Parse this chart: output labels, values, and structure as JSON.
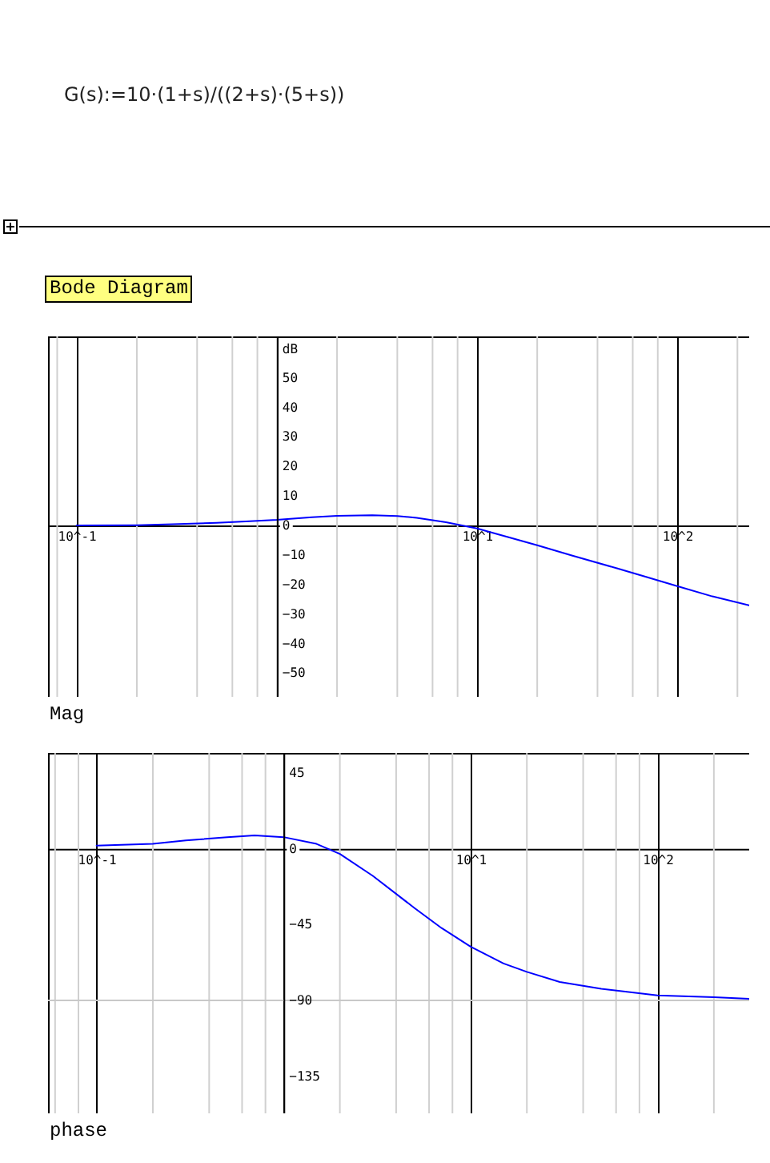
{
  "chart_data": [
    {
      "type": "line",
      "title": "Bode Diagram",
      "annotations": [
        "G(s):=10·(1+s)/((2+s)·(5+s))"
      ],
      "xlabel": "Mag",
      "ylabel": "dB",
      "log": "x",
      "xlim": [
        0.072,
        229
      ],
      "ylim": [
        -58,
        64
      ],
      "xticks": [
        {
          "value": 0.1,
          "label": "10^-1"
        },
        {
          "value": 1,
          "label": null
        },
        {
          "value": 10,
          "label": "10^1"
        },
        {
          "value": 100,
          "label": "10^2"
        }
      ],
      "yticks": [
        -50,
        -40,
        -30,
        -20,
        -10,
        0,
        10,
        20,
        30,
        40,
        50
      ],
      "grid": "x",
      "marker": "none",
      "line_style": "solid",
      "series": [
        {
          "color": "#0000ff",
          "x": [
            0.1,
            0.2,
            0.3,
            0.5,
            0.7,
            1,
            1.5,
            2,
            3,
            4,
            5,
            7,
            10,
            15,
            20,
            30,
            50,
            70,
            100,
            150,
            229
          ],
          "values": [
            0,
            0.1,
            0.4,
            0.9,
            1.4,
            1.9,
            2.8,
            3.3,
            3.5,
            3.2,
            2.6,
            1.1,
            -1,
            -4.3,
            -6.7,
            -10.2,
            -14.5,
            -17.4,
            -20.5,
            -24,
            -27
          ]
        }
      ]
    },
    {
      "type": "line",
      "xlabel": "phase",
      "log": "x",
      "xlim": [
        0.055,
        309
      ],
      "ylim": [
        -157,
        57
      ],
      "xticks": [
        {
          "value": 0.1,
          "label": "10^-1"
        },
        {
          "value": 1,
          "label": null
        },
        {
          "value": 10,
          "label": "10^1"
        },
        {
          "value": 100,
          "label": "10^2"
        }
      ],
      "yticks": [
        -135,
        -90,
        -45,
        0,
        45
      ],
      "grid": "x",
      "marker": "none",
      "line_style": "solid",
      "ref_lines": [
        {
          "axis": "y",
          "value": -90,
          "color": "#c8c8c8"
        }
      ],
      "series": [
        {
          "color": "#0000ff",
          "x": [
            0.1,
            0.2,
            0.3,
            0.5,
            0.7,
            1,
            1.5,
            2,
            3,
            5,
            7,
            10,
            15,
            20,
            30,
            50,
            100,
            200,
            309
          ],
          "values": [
            2,
            3,
            5,
            7,
            8,
            7,
            3,
            -3,
            -16,
            -35,
            -47,
            -58,
            -68,
            -73,
            -79,
            -83,
            -87,
            -88,
            -89
          ]
        }
      ]
    }
  ]
}
